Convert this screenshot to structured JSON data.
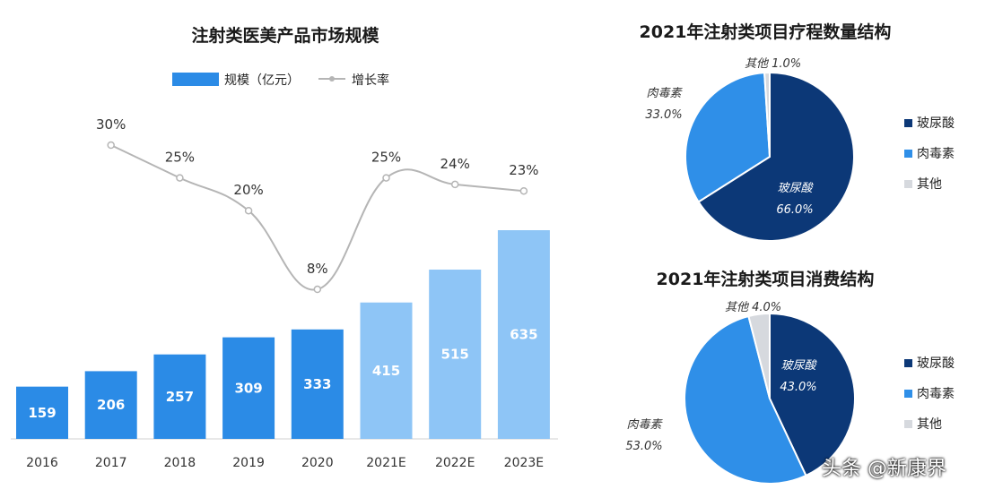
{
  "chart_data": [
    {
      "type": "bar+line",
      "title": "注射类医美产品市场规模",
      "categories": [
        "2016",
        "2017",
        "2018",
        "2019",
        "2020",
        "2021E",
        "2022E",
        "2023E"
      ],
      "series": [
        {
          "name": "规模（亿元）",
          "type": "bar",
          "values": [
            159,
            206,
            257,
            309,
            333,
            415,
            515,
            635
          ],
          "labels": [
            "159",
            "206",
            "257",
            "309",
            "333",
            "415",
            "515",
            "635"
          ]
        },
        {
          "name": "增长率",
          "type": "line",
          "x": [
            "2017",
            "2018",
            "2019",
            "2020",
            "2021E",
            "2022E",
            "2023E"
          ],
          "values": [
            30,
            25,
            20,
            8,
            25,
            24,
            23
          ],
          "labels": [
            "30%",
            "25%",
            "20%",
            "8%",
            "25%",
            "24%",
            "23%"
          ]
        }
      ],
      "legend_position": "top",
      "colors": {
        "bar_actual": "#2b8be6",
        "bar_forecast": "#8ec5f6",
        "line": "#b5b5b5"
      }
    },
    {
      "type": "pie",
      "title": "2021年注射类项目疗程数量结构",
      "slices": [
        {
          "name": "玻尿酸",
          "value": 66.0,
          "label": "66.0%",
          "color": "#0c3877"
        },
        {
          "name": "肉毒素",
          "value": 33.0,
          "label": "33.0%",
          "color": "#2f8fe8"
        },
        {
          "name": "其他",
          "value": 1.0,
          "label": "1.0%",
          "color": "#d6d9de"
        }
      ],
      "legend_position": "right"
    },
    {
      "type": "pie",
      "title": "2021年注射类项目消费结构",
      "slices": [
        {
          "name": "玻尿酸",
          "value": 43.0,
          "label": "43.0%",
          "color": "#0c3877"
        },
        {
          "name": "肉毒素",
          "value": 53.0,
          "label": "53.0%",
          "color": "#2f8fe8"
        },
        {
          "name": "其他",
          "value": 4.0,
          "label": "4.0%",
          "color": "#d6d9de"
        }
      ],
      "legend_position": "right"
    }
  ],
  "watermark": "头条 @新康界"
}
